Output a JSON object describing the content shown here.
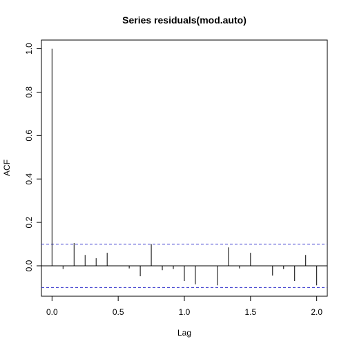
{
  "chart_data": {
    "type": "bar",
    "title": "Series  residuals(mod.auto)",
    "xlabel": "Lag",
    "ylabel": "ACF",
    "xlim": [
      -0.08,
      2.08
    ],
    "ylim": [
      -0.14,
      1.04
    ],
    "x_ticks": [
      "0.0",
      "0.5",
      "1.0",
      "1.5",
      "2.0"
    ],
    "y_ticks": [
      "0.0",
      "0.2",
      "0.4",
      "0.6",
      "0.8",
      "1.0"
    ],
    "grid": false,
    "legend": "none",
    "confidence_band": 0.1,
    "colors": {
      "bars": "#000000",
      "confidence": "#3333cc",
      "zero": "#000000"
    },
    "lags": [
      0,
      0.0833,
      0.1667,
      0.25,
      0.3333,
      0.4167,
      0.5,
      0.5833,
      0.6667,
      0.75,
      0.8333,
      0.9167,
      1.0,
      1.0833,
      1.1667,
      1.25,
      1.3333,
      1.4167,
      1.5,
      1.5833,
      1.6667,
      1.75,
      1.8333,
      1.9167,
      2.0
    ],
    "values": [
      1.0,
      -0.015,
      0.105,
      0.05,
      0.035,
      0.06,
      0.0,
      -0.012,
      -0.048,
      0.1,
      -0.02,
      -0.015,
      -0.07,
      -0.085,
      0.0,
      -0.09,
      0.085,
      -0.012,
      0.06,
      0.0,
      -0.045,
      -0.015,
      -0.07,
      0.05,
      -0.09
    ]
  }
}
